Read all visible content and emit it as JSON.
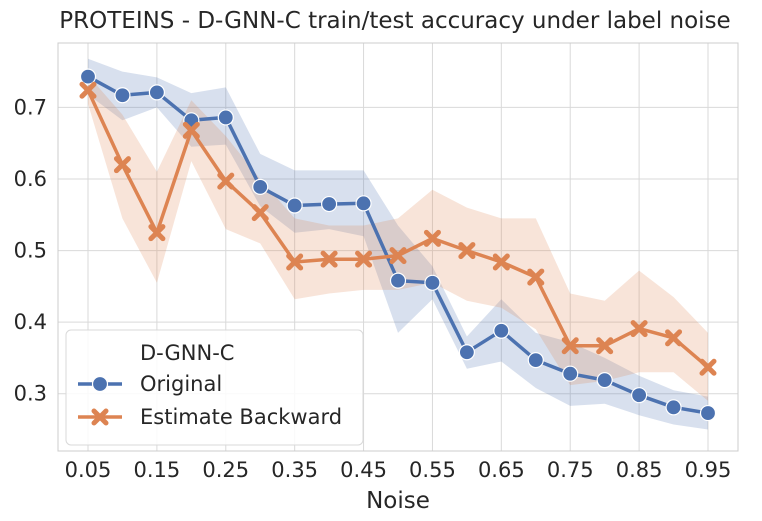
{
  "chart_data": {
    "type": "line",
    "title": "PROTEINS - D-GNN-C train/test accuracy under label noise",
    "xlabel": "Noise",
    "ylabel": "",
    "xlim": [
      0.05,
      0.95
    ],
    "ylim": [
      0.22,
      0.79
    ],
    "x": [
      0.05,
      0.1,
      0.15,
      0.2,
      0.25,
      0.3,
      0.35,
      0.4,
      0.45,
      0.5,
      0.55,
      0.6,
      0.65,
      0.7,
      0.75,
      0.8,
      0.85,
      0.9,
      0.95
    ],
    "x_ticks": [
      "0.05",
      "0.15",
      "0.25",
      "0.35",
      "0.45",
      "0.55",
      "0.65",
      "0.75",
      "0.85",
      "0.95"
    ],
    "x_tick_values": [
      0.05,
      0.15,
      0.25,
      0.35,
      0.45,
      0.55,
      0.65,
      0.75,
      0.85,
      0.95
    ],
    "y_ticks": [
      "0.3",
      "0.4",
      "0.5",
      "0.6",
      "0.7"
    ],
    "y_tick_values": [
      0.3,
      0.4,
      0.5,
      0.6,
      0.7
    ],
    "grid": true,
    "legend": {
      "title": "D-GNN-C",
      "position": "bottom-left"
    },
    "series": [
      {
        "name": "Original",
        "color": "#4c72b0",
        "marker": "circle",
        "values": [
          0.743,
          0.717,
          0.721,
          0.682,
          0.686,
          0.589,
          0.563,
          0.565,
          0.566,
          0.458,
          0.455,
          0.358,
          0.388,
          0.347,
          0.328,
          0.319,
          0.298,
          0.281,
          0.273
        ],
        "lower": [
          0.718,
          0.682,
          0.7,
          0.645,
          0.648,
          0.562,
          0.525,
          0.53,
          0.52,
          0.385,
          0.432,
          0.335,
          0.345,
          0.308,
          0.283,
          0.286,
          0.27,
          0.257,
          0.25
        ],
        "upper": [
          0.768,
          0.75,
          0.742,
          0.72,
          0.728,
          0.635,
          0.612,
          0.612,
          0.612,
          0.535,
          0.478,
          0.38,
          0.432,
          0.385,
          0.372,
          0.35,
          0.325,
          0.305,
          0.296
        ]
      },
      {
        "name": "Estimate Backward",
        "color": "#dd8452",
        "marker": "x",
        "values": [
          0.724,
          0.62,
          0.525,
          0.668,
          0.597,
          0.553,
          0.484,
          0.488,
          0.488,
          0.493,
          0.517,
          0.5,
          0.484,
          0.463,
          0.367,
          0.367,
          0.391,
          0.378,
          0.337
        ],
        "lower": [
          0.705,
          0.545,
          0.455,
          0.625,
          0.53,
          0.51,
          0.432,
          0.44,
          0.445,
          0.445,
          0.455,
          0.43,
          0.42,
          0.39,
          0.312,
          0.318,
          0.33,
          0.33,
          0.29
        ],
        "upper": [
          0.745,
          0.69,
          0.61,
          0.71,
          0.66,
          0.6,
          0.545,
          0.535,
          0.535,
          0.545,
          0.585,
          0.56,
          0.545,
          0.545,
          0.44,
          0.43,
          0.472,
          0.435,
          0.385
        ]
      }
    ]
  }
}
